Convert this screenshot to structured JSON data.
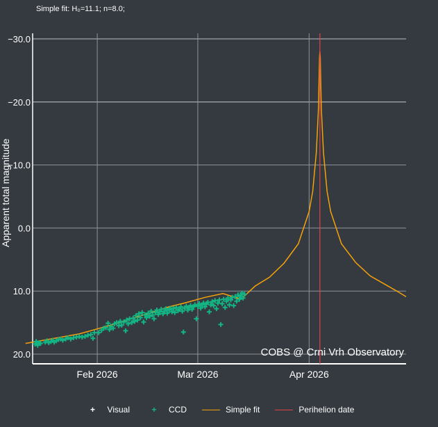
{
  "subtitle": "Simple fit: H₀=11.1; n=8.0;",
  "annotation": "COBS @ Crni Vrh Observatory",
  "colors": {
    "background": "#343a40",
    "grid": "#8f9399",
    "visual": "#ffffff",
    "ccd": "#13b585",
    "fit": "#f5a20a",
    "perihelion": "#e04444"
  },
  "chart_data": {
    "type": "scatter",
    "title": "",
    "ylabel": "Apparent total magnitude",
    "xlabel": "",
    "x_range_days": [
      -18,
      86
    ],
    "y_range": [
      -30.0,
      20.0
    ],
    "y_reversed": true,
    "yticks": [
      "-30.0",
      "-20.0",
      "-10.0",
      "0.0",
      "10.0",
      "20.0"
    ],
    "xticks": [
      {
        "label": "Feb 2026",
        "day": 0
      },
      {
        "label": "Mar 2026",
        "day": 28
      },
      {
        "label": "Apr 2026",
        "day": 59
      }
    ],
    "perihelion_day": 62,
    "series": [
      {
        "name": "Visual",
        "kind": "marker",
        "points": []
      },
      {
        "name": "CCD",
        "kind": "marker",
        "points": [
          [
            -17.3,
            18.4
          ],
          [
            -17.0,
            18.0
          ],
          [
            -16.6,
            18.6
          ],
          [
            -16.2,
            18.2
          ],
          [
            -15.8,
            18.3
          ],
          [
            -14.5,
            18.1
          ],
          [
            -14.0,
            17.9
          ],
          [
            -13.5,
            18.2
          ],
          [
            -12.9,
            18.0
          ],
          [
            -12.4,
            17.8
          ],
          [
            -12.0,
            18.1
          ],
          [
            -11.4,
            17.9
          ],
          [
            -10.8,
            17.7
          ],
          [
            -10.2,
            17.6
          ],
          [
            -9.6,
            17.8
          ],
          [
            -8.8,
            17.6
          ],
          [
            -8.2,
            17.4
          ],
          [
            -7.4,
            17.6
          ],
          [
            -6.6,
            17.4
          ],
          [
            -5.8,
            17.3
          ],
          [
            -5.0,
            17.2
          ],
          [
            -4.2,
            17.3
          ],
          [
            -3.4,
            17.2
          ],
          [
            -2.6,
            17.0
          ],
          [
            -1.8,
            16.9
          ],
          [
            -1.2,
            17.5
          ],
          [
            -0.8,
            16.6
          ],
          [
            0.4,
            16.6
          ],
          [
            1.2,
            16.2
          ],
          [
            1.8,
            15.9
          ],
          [
            2.4,
            15.8
          ],
          [
            3.0,
            15.1
          ],
          [
            3.4,
            16.1
          ],
          [
            3.8,
            15.6
          ],
          [
            4.4,
            15.9
          ],
          [
            4.8,
            15.2
          ],
          [
            5.4,
            15.0
          ],
          [
            6.0,
            15.5
          ],
          [
            6.4,
            14.8
          ],
          [
            6.8,
            15.4
          ],
          [
            7.4,
            14.9
          ],
          [
            7.9,
            16.3
          ],
          [
            8.2,
            14.6
          ],
          [
            8.6,
            15.2
          ],
          [
            9.0,
            14.4
          ],
          [
            9.6,
            15.0
          ],
          [
            10.0,
            14.3
          ],
          [
            10.4,
            14.8
          ],
          [
            10.8,
            13.9
          ],
          [
            11.2,
            14.6
          ],
          [
            11.6,
            13.6
          ],
          [
            12.0,
            14.2
          ],
          [
            12.5,
            13.4
          ],
          [
            12.9,
            14.9
          ],
          [
            13.3,
            13.8
          ],
          [
            13.7,
            14.2
          ],
          [
            14.2,
            13.5
          ],
          [
            14.6,
            14.0
          ],
          [
            15.0,
            13.2
          ],
          [
            15.4,
            13.8
          ],
          [
            15.8,
            14.4
          ],
          [
            16.2,
            13.4
          ],
          [
            16.6,
            13.0
          ],
          [
            17.0,
            13.7
          ],
          [
            17.4,
            13.3
          ],
          [
            17.8,
            12.9
          ],
          [
            18.3,
            13.6
          ],
          [
            18.7,
            13.2
          ],
          [
            19.1,
            12.8
          ],
          [
            19.5,
            13.5
          ],
          [
            20.0,
            13.0
          ],
          [
            20.4,
            12.7
          ],
          [
            20.8,
            13.3
          ],
          [
            21.2,
            12.8
          ],
          [
            21.6,
            13.4
          ],
          [
            22.0,
            12.6
          ],
          [
            22.5,
            13.1
          ],
          [
            22.9,
            12.9
          ],
          [
            23.3,
            12.5
          ],
          [
            23.7,
            13.2
          ],
          [
            24.0,
            16.5
          ],
          [
            24.3,
            12.7
          ],
          [
            24.8,
            12.4
          ],
          [
            25.2,
            13.0
          ],
          [
            25.6,
            12.6
          ],
          [
            26.0,
            12.3
          ],
          [
            26.4,
            12.9
          ],
          [
            26.8,
            12.5
          ],
          [
            27.2,
            12.2
          ],
          [
            27.6,
            14.4
          ],
          [
            28.0,
            12.4
          ],
          [
            28.4,
            12.0
          ],
          [
            28.8,
            12.7
          ],
          [
            29.2,
            12.2
          ],
          [
            29.6,
            11.9
          ],
          [
            30.0,
            12.5
          ],
          [
            30.4,
            12.0
          ],
          [
            30.8,
            11.8
          ],
          [
            31.2,
            13.3
          ],
          [
            31.6,
            12.2
          ],
          [
            32.0,
            11.7
          ],
          [
            32.4,
            12.3
          ],
          [
            32.8,
            11.5
          ],
          [
            33.2,
            12.8
          ],
          [
            33.6,
            11.9
          ],
          [
            34.0,
            11.4
          ],
          [
            34.4,
            15.3
          ],
          [
            34.8,
            12.0
          ],
          [
            35.2,
            11.3
          ],
          [
            35.6,
            12.6
          ],
          [
            36.0,
            11.6
          ],
          [
            36.4,
            11.1
          ],
          [
            36.8,
            12.2
          ],
          [
            37.2,
            11.4
          ],
          [
            37.6,
            11.0
          ],
          [
            38.0,
            12.3
          ],
          [
            38.4,
            10.9
          ],
          [
            38.8,
            11.6
          ],
          [
            39.2,
            10.6
          ],
          [
            39.6,
            11.3
          ],
          [
            40.0,
            10.8
          ],
          [
            40.3,
            10.3
          ],
          [
            40.6,
            11.1
          ],
          [
            41.0,
            10.5
          ]
        ]
      },
      {
        "name": "Simple fit",
        "kind": "line",
        "points": [
          [
            -20,
            18.3
          ],
          [
            -10,
            17.3
          ],
          [
            -5,
            16.8
          ],
          [
            0,
            16.0
          ],
          [
            5,
            15.2
          ],
          [
            10,
            14.3
          ],
          [
            15,
            13.4
          ],
          [
            20,
            12.5
          ],
          [
            25,
            11.8
          ],
          [
            30,
            11.0
          ],
          [
            35,
            10.4
          ],
          [
            40,
            11.3
          ],
          [
            44,
            9.2
          ],
          [
            48,
            7.8
          ],
          [
            52,
            5.6
          ],
          [
            56,
            2.5
          ],
          [
            59,
            -2.6
          ],
          [
            60,
            -5.8
          ],
          [
            61,
            -12.0
          ],
          [
            61.6,
            -19.0
          ],
          [
            61.9,
            -27.0
          ],
          [
            62,
            -28.0
          ],
          [
            62.1,
            -27.0
          ],
          [
            62.4,
            -19.0
          ],
          [
            63,
            -12.0
          ],
          [
            64,
            -5.8
          ],
          [
            65,
            -2.6
          ],
          [
            68,
            2.5
          ],
          [
            72,
            5.5
          ],
          [
            76,
            7.6
          ],
          [
            80,
            8.9
          ],
          [
            84,
            10.2
          ],
          [
            86,
            10.9
          ]
        ]
      },
      {
        "name": "Perihelion date",
        "kind": "vline",
        "points": []
      }
    ],
    "legend_position": "bottom-center"
  }
}
